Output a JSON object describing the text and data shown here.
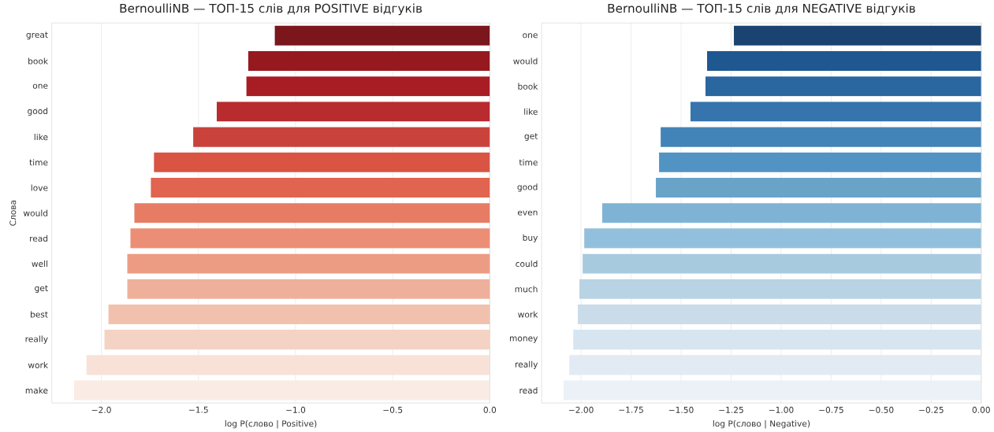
{
  "chart_data": [
    {
      "type": "bar",
      "orientation": "horizontal",
      "title": "BernoulliNB — ТОП-15 слів для POSITIVE відгуків",
      "xlabel": "log P(слово | Positive)",
      "ylabel": "Слова",
      "grid": "x",
      "categories": [
        "great",
        "book",
        "one",
        "good",
        "like",
        "time",
        "love",
        "would",
        "read",
        "well",
        "get",
        "best",
        "really",
        "work",
        "make"
      ],
      "values": [
        -1.107,
        -1.244,
        -1.253,
        -1.406,
        -1.527,
        -1.729,
        -1.745,
        -1.83,
        -1.851,
        -1.867,
        -1.867,
        -1.964,
        -1.984,
        -2.077,
        -2.141
      ],
      "colors": [
        "#7b161c",
        "#95191e",
        "#a81d23",
        "#b82b2e",
        "#c9433c",
        "#d95443",
        "#e0644f",
        "#e77c64",
        "#ec8e75",
        "#ed9c84",
        "#efb09b",
        "#f1c1ad",
        "#f5d3c4",
        "#f8e2d8",
        "#faece5"
      ],
      "xlim": [
        -2.255,
        0
      ],
      "xticks": [
        {
          "value": -2.0,
          "label": "−2.0"
        },
        {
          "value": -1.5,
          "label": "−1.5"
        },
        {
          "value": -1.0,
          "label": "−1.0"
        },
        {
          "value": -0.5,
          "label": "−0.5"
        },
        {
          "value": 0.0,
          "label": "0.0"
        }
      ]
    },
    {
      "type": "bar",
      "orientation": "horizontal",
      "title": "BernoulliNB — ТОП-15 слів для NEGATIVE відгуків",
      "xlabel": "log P(слово | Negative)",
      "grid": "x",
      "categories": [
        "one",
        "would",
        "book",
        "like",
        "get",
        "time",
        "good",
        "even",
        "buy",
        "could",
        "much",
        "work",
        "money",
        "really",
        "read"
      ],
      "values": [
        -1.236,
        -1.37,
        -1.378,
        -1.453,
        -1.602,
        -1.61,
        -1.626,
        -1.894,
        -1.984,
        -1.992,
        -2.008,
        -2.016,
        -2.039,
        -2.059,
        -2.087
      ],
      "colors": [
        "#1b4371",
        "#1f5791",
        "#2a67a1",
        "#3574ad",
        "#4384b8",
        "#5193c3",
        "#69a3c8",
        "#7eb3d5",
        "#92c0dc",
        "#a7cadf",
        "#b8d3e3",
        "#cadbea",
        "#d7e5f1",
        "#e2eaf3",
        "#ecf1f8"
      ],
      "xlim": [
        -2.197,
        0
      ],
      "xticks": [
        {
          "value": -2.0,
          "label": "−2.00"
        },
        {
          "value": -1.75,
          "label": "−1.75"
        },
        {
          "value": -1.5,
          "label": "−1.50"
        },
        {
          "value": -1.25,
          "label": "−1.25"
        },
        {
          "value": -1.0,
          "label": "−1.00"
        },
        {
          "value": -0.75,
          "label": "−0.75"
        },
        {
          "value": -0.5,
          "label": "−0.50"
        },
        {
          "value": -0.25,
          "label": "−0.25"
        },
        {
          "value": 0.0,
          "label": "0.00"
        }
      ]
    }
  ]
}
